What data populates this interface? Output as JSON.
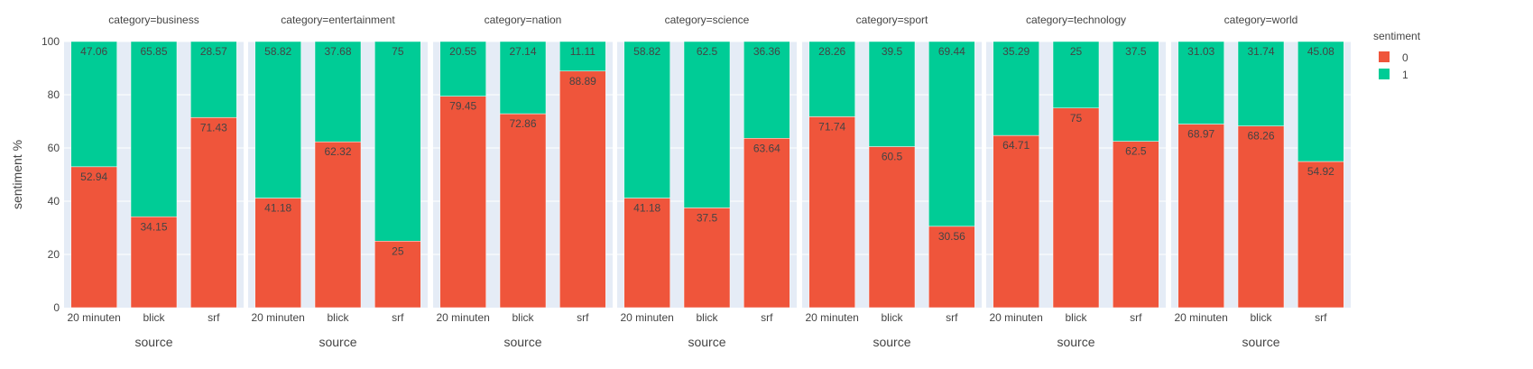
{
  "chart_data": {
    "type": "bar",
    "barmode": "stack",
    "ylabel": "sentiment %",
    "xlabel": "source",
    "ylim": [
      0,
      100
    ],
    "yticks": [
      0,
      20,
      40,
      60,
      80,
      100
    ],
    "categories": [
      "20 minuten",
      "blick",
      "srf"
    ],
    "legend": {
      "title": "sentiment",
      "position": "top-right",
      "items": [
        {
          "label": "0",
          "color": "#EF553B"
        },
        {
          "label": "1",
          "color": "#00CC96"
        }
      ]
    },
    "colors": {
      "sentiment_0": "#EF553B",
      "sentiment_1": "#00CC96",
      "plot_bg": "#E5ECF6",
      "text": "#444444"
    },
    "facets": [
      {
        "title": "category=business",
        "values0": [
          52.94,
          34.15,
          71.43
        ],
        "values1": [
          47.06,
          65.85,
          28.57
        ]
      },
      {
        "title": "category=entertainment",
        "values0": [
          41.18,
          62.32,
          25
        ],
        "values1": [
          58.82,
          37.68,
          75
        ]
      },
      {
        "title": "category=nation",
        "values0": [
          79.45,
          72.86,
          88.89
        ],
        "values1": [
          20.55,
          27.14,
          11.11
        ]
      },
      {
        "title": "category=science",
        "values0": [
          41.18,
          37.5,
          63.64
        ],
        "values1": [
          58.82,
          62.5,
          36.36
        ]
      },
      {
        "title": "category=sport",
        "values0": [
          71.74,
          60.5,
          30.56
        ],
        "values1": [
          28.26,
          39.5,
          69.44
        ]
      },
      {
        "title": "category=technology",
        "values0": [
          64.71,
          75,
          62.5
        ],
        "values1": [
          35.29,
          25,
          37.5
        ]
      },
      {
        "title": "category=world",
        "values0": [
          68.97,
          68.26,
          54.92
        ],
        "values1": [
          31.03,
          31.74,
          45.08
        ]
      }
    ]
  }
}
